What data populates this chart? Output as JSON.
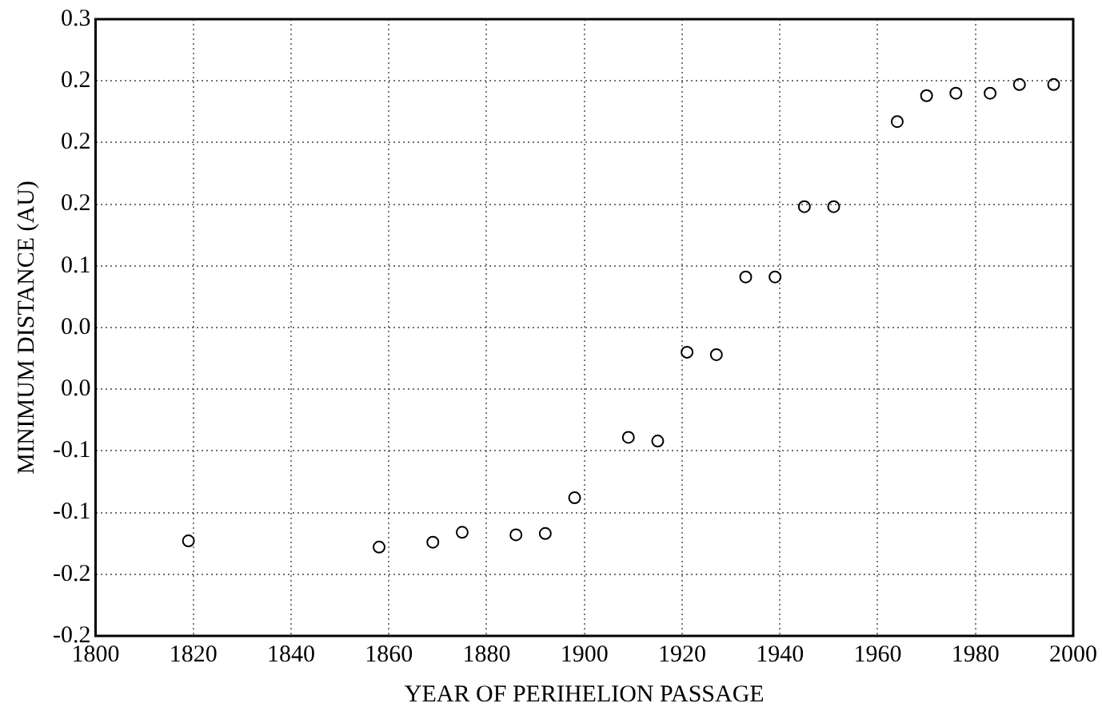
{
  "chart_data": {
    "type": "scatter",
    "xlabel": "YEAR OF PERIHELION PASSAGE",
    "ylabel": "MINIMUM DISTANCE (AU)",
    "x": [
      1819,
      1858,
      1869,
      1875,
      1886,
      1892,
      1898,
      1909,
      1915,
      1921,
      1927,
      1933,
      1939,
      1945,
      1951,
      1964,
      1970,
      1976,
      1983,
      1989,
      1996
    ],
    "series": [
      {
        "color": "#000000",
        "values": [
          -0.123,
          -0.128,
          -0.124,
          -0.116,
          -0.118,
          -0.117,
          -0.088,
          -0.039,
          -0.042,
          0.03,
          0.028,
          0.091,
          0.091,
          0.148,
          0.148,
          0.217,
          0.238,
          0.24,
          0.24,
          0.247,
          0.247
        ]
      }
    ],
    "xlim": [
      1800,
      2000
    ],
    "xticks": [
      1800,
      1820,
      1840,
      1860,
      1880,
      1900,
      1920,
      1940,
      1960,
      1980,
      2000
    ],
    "ylim": [
      -0.2,
      0.3
    ],
    "yticks": [
      {
        "value": -0.2,
        "label": "-0.2"
      },
      {
        "value": -0.15,
        "label": "-0.2"
      },
      {
        "value": -0.1,
        "label": "-0.1"
      },
      {
        "value": -0.05,
        "label": "-0.1"
      },
      {
        "value": 0,
        "label": "0.0"
      },
      {
        "value": 0.05,
        "label": "0.0"
      },
      {
        "value": 0.1,
        "label": "0.1"
      },
      {
        "value": 0.15,
        "label": "0.2"
      },
      {
        "value": 0.2,
        "label": "0.2"
      },
      {
        "value": 0.25,
        "label": "0.2"
      },
      {
        "value": 0.3,
        "label": "0.3"
      }
    ],
    "grid": true,
    "legend": false,
    "marker": "circle"
  }
}
